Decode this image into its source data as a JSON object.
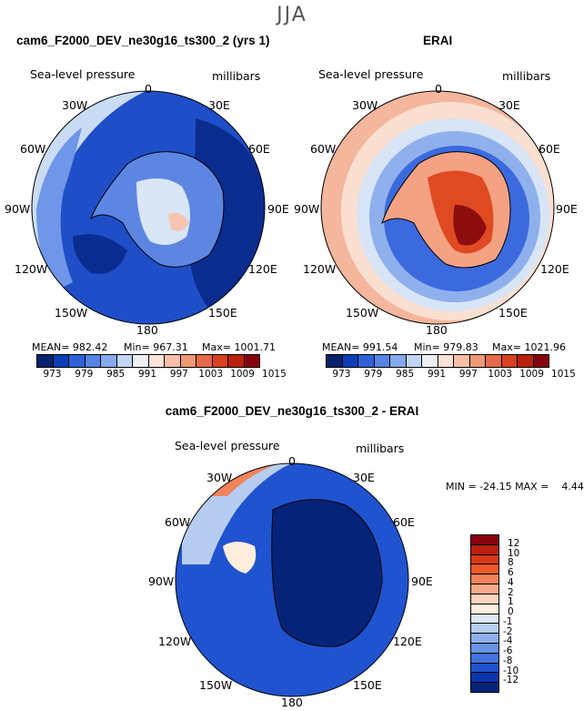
{
  "season": "JJA",
  "panels": {
    "model": {
      "title": "cam6_F2000_DEV_ne30g16_ts300_2 (yrs 1)",
      "variable": "Sea-level pressure",
      "units": "millibars",
      "mean_label": "MEAN= 982.42",
      "min_label": "Min= 967.31",
      "max_label": "Max= 1001.71"
    },
    "obs": {
      "title": "ERAI",
      "variable": "Sea-level pressure",
      "units": "millibars",
      "mean_label": "MEAN= 991.54",
      "min_label": "Min= 979.83",
      "max_label": "Max= 1021.96"
    },
    "diff": {
      "title": "cam6_F2000_DEV_ne30g16_ts300_2 - ERAI",
      "variable": "Sea-level pressure",
      "units": "millibars",
      "minmax_label": "MIN = -24.15 MAX =    4.44"
    }
  },
  "longitude_labels": {
    "top": "0",
    "tr": "30E",
    "rt": "60E",
    "right": "90E",
    "rb": "120E",
    "br": "150E",
    "bottom": "180",
    "bl": "150W",
    "lb": "120W",
    "left": "90W",
    "lt": "60W",
    "tl": "30W"
  },
  "abs_colorbar": {
    "labels": [
      "973",
      "979",
      "985",
      "991",
      "997",
      "1003",
      "1009",
      "1015"
    ],
    "colors": [
      "#08236b",
      "#0c3fb8",
      "#2e62d8",
      "#5584e6",
      "#86a9ee",
      "#c2d6f4",
      "#eef1f4",
      "#fbe3d8",
      "#f7bfa6",
      "#f19876",
      "#e8694a",
      "#d8411f",
      "#b9200d",
      "#87000d"
    ]
  },
  "diff_colorbar": {
    "labels": [
      "12",
      "10",
      "8",
      "6",
      "4",
      "2",
      "1",
      "0",
      "-1",
      "-2",
      "-4",
      "-6",
      "-8",
      "-10",
      "-12"
    ],
    "colors": [
      "#87000d",
      "#b9200d",
      "#d83a16",
      "#ec5a2c",
      "#f1845b",
      "#f5a986",
      "#fbd2bd",
      "#fdeede",
      "#dce8f6",
      "#b6cdf1",
      "#8fb0ec",
      "#6a93e6",
      "#4373de",
      "#1f53cf",
      "#0c35ad",
      "#06237a"
    ]
  }
}
